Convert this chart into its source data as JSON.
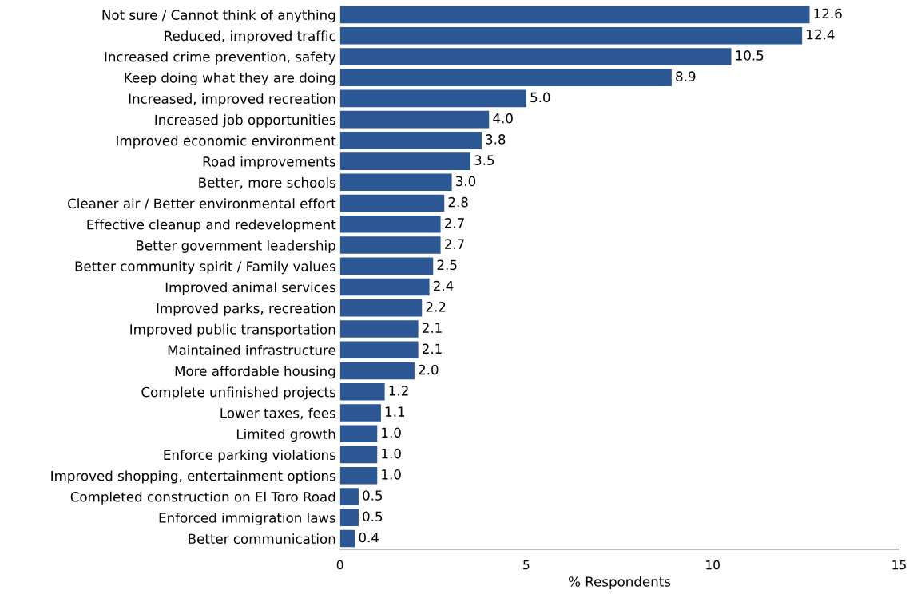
{
  "chart_data": {
    "type": "bar",
    "orientation": "horizontal",
    "xlabel": "% Respondents",
    "categories": [
      "Not sure / Cannot think of anything",
      "Reduced, improved traffic",
      "Increased crime prevention, safety",
      "Keep doing what they are doing",
      "Increased, improved recreation",
      "Increased job opportunities",
      "Improved economic environment",
      "Road improvements",
      "Better, more schools",
      "Cleaner air / Better environmental effort",
      "Effective cleanup and redevelopment",
      "Better government leadership",
      "Better community spirit / Family values",
      "Improved animal services",
      "Improved parks, recreation",
      "Improved public transportation",
      "Maintained infrastructure",
      "More affordable housing",
      "Complete unfinished projects",
      "Lower taxes, fees",
      "Limited growth",
      "Enforce parking violations",
      "Improved shopping, entertainment options",
      "Completed construction on El Toro Road",
      "Enforced immigration laws",
      "Better communication"
    ],
    "values": [
      12.6,
      12.4,
      10.5,
      8.9,
      5.0,
      4.0,
      3.8,
      3.5,
      3.0,
      2.8,
      2.7,
      2.7,
      2.5,
      2.4,
      2.2,
      2.1,
      2.1,
      2.0,
      1.2,
      1.1,
      1.0,
      1.0,
      1.0,
      0.5,
      0.5,
      0.4
    ],
    "value_labels": [
      "12.6",
      "12.4",
      "10.5",
      "8.9",
      "5.0",
      "4.0",
      "3.8",
      "3.5",
      "3.0",
      "2.8",
      "2.7",
      "2.7",
      "2.5",
      "2.4",
      "2.2",
      "2.1",
      "2.1",
      "2.0",
      "1.2",
      "1.1",
      "1.0",
      "1.0",
      "1.0",
      "0.5",
      "0.5",
      "0.4"
    ],
    "color": "#2b5794",
    "xlim": [
      0,
      15
    ],
    "xticks": [
      0,
      5,
      10,
      15
    ],
    "grid": false,
    "legend": false
  }
}
